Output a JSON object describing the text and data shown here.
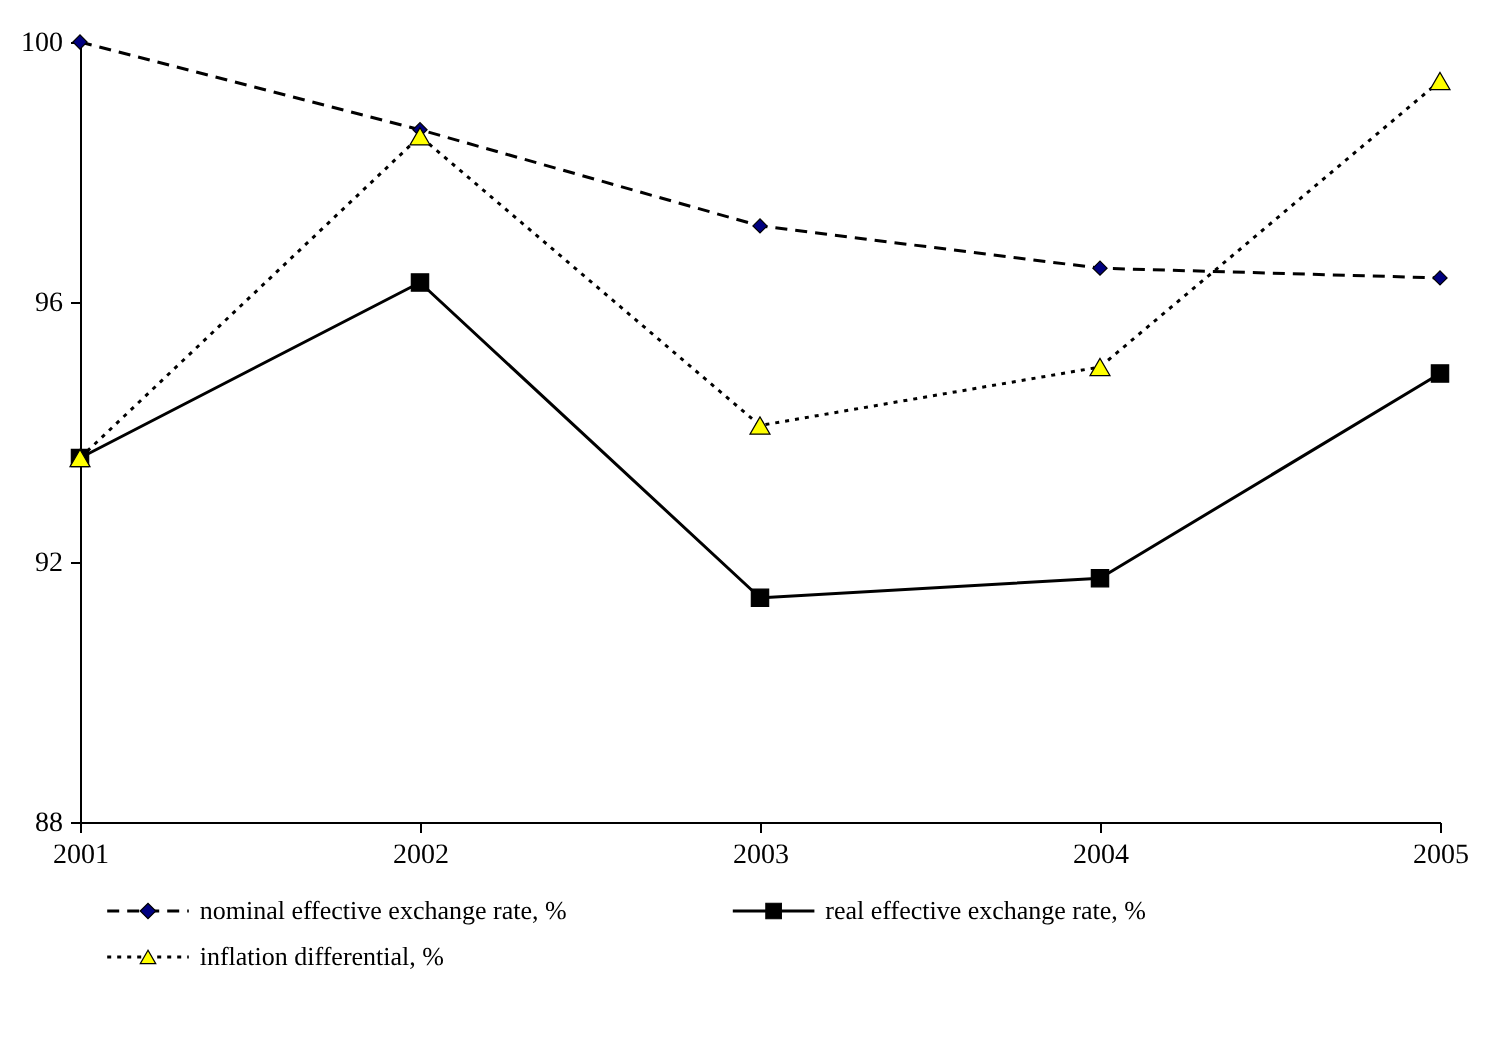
{
  "chart_data": {
    "type": "line",
    "categories": [
      "2001",
      "2002",
      "2003",
      "2004",
      "2005"
    ],
    "ylim": [
      88,
      100
    ],
    "yticks": [
      88,
      92,
      96,
      100
    ],
    "grid": false,
    "legend": "bottom",
    "series": [
      {
        "name": "nominal effective exchange rate, %",
        "color": "#000080",
        "marker": "diamond",
        "line_style": "dashed",
        "values": [
          100,
          98.65,
          97.17,
          96.52,
          96.37
        ]
      },
      {
        "name": "real effective exchange rate, %",
        "color": "#000000",
        "marker": "square",
        "line_style": "solid",
        "values": [
          93.6,
          96.3,
          91.45,
          91.75,
          94.9
        ]
      },
      {
        "name": "inflation differential, %",
        "color": "#ffff00",
        "marker": "triangle",
        "line_style": "dotted",
        "values": [
          93.6,
          98.55,
          94.1,
          95.0,
          99.4
        ]
      }
    ]
  }
}
